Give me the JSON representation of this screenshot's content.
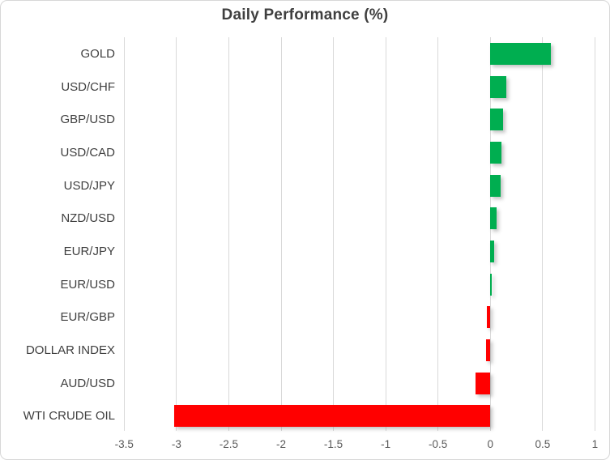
{
  "chart_data": {
    "type": "bar",
    "orientation": "horizontal",
    "title": "Daily Performance (%)",
    "xlabel": "",
    "ylabel": "",
    "categories": [
      "GOLD",
      "USD/CHF",
      "GBP/USD",
      "USD/CAD",
      "USD/JPY",
      "NZD/USD",
      "EUR/JPY",
      "EUR/USD",
      "EUR/GBP",
      "DOLLAR INDEX",
      "AUD/USD",
      "WTI CRUDE OIL"
    ],
    "values": [
      0.58,
      0.15,
      0.12,
      0.11,
      0.1,
      0.06,
      0.04,
      0.01,
      -0.03,
      -0.04,
      -0.14,
      -3.02
    ],
    "xlim": [
      -3.5,
      1
    ],
    "xticks": [
      "-3.5",
      "-3",
      "-2.5",
      "-2",
      "-1.5",
      "-1",
      "-0.5",
      "0",
      "0.5",
      "1"
    ],
    "grid": "vertical",
    "legend": "none",
    "colors": {
      "positive": "#00AE50",
      "negative": "#FF0000",
      "gridline": "#D9D9D9",
      "title_text": "#3F3F3F",
      "category_text": "#3F3F3F",
      "tick_text": "#595959"
    }
  }
}
